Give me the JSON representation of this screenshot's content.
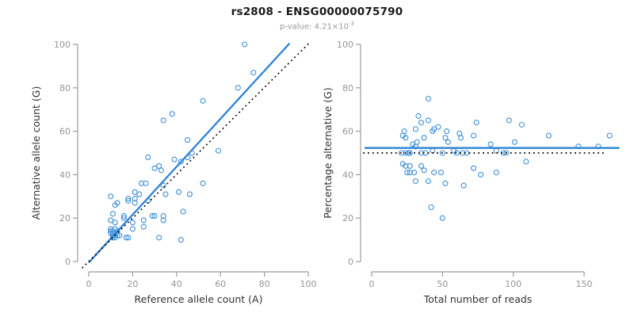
{
  "header": {
    "title": "rs2808 - ENSG00000075790",
    "subtitle_prefix": "p-value: 4.21×10",
    "subtitle_exponent": "-3"
  },
  "colors": {
    "point": "#3E8ED6",
    "solid_line": "#2B82D8",
    "dotted_line": "#000000",
    "axis": "#9b9b9b",
    "tick_label": "#969696",
    "axis_title": "#333333",
    "title": "#1a1a1a",
    "subtitle": "#9a9a9a"
  },
  "chart_data": [
    {
      "type": "scatter",
      "name": "allele-counts-scatter",
      "xlabel": "Reference allele count (A)",
      "ylabel": "Alternative allele count (G)",
      "xlim": [
        0,
        100
      ],
      "ylim": [
        0,
        100
      ],
      "xticks": [
        0,
        20,
        40,
        60,
        80,
        100
      ],
      "yticks": [
        0,
        20,
        40,
        60,
        80,
        100
      ],
      "grid": false,
      "legend": null,
      "points": [
        [
          71,
          100
        ],
        [
          75,
          87
        ],
        [
          68,
          80
        ],
        [
          52,
          74
        ],
        [
          38,
          68
        ],
        [
          34,
          65
        ],
        [
          45,
          56
        ],
        [
          59,
          51
        ],
        [
          47,
          50
        ],
        [
          45,
          48
        ],
        [
          27,
          48
        ],
        [
          39,
          47
        ],
        [
          42,
          46
        ],
        [
          30,
          43
        ],
        [
          32,
          44
        ],
        [
          33,
          42
        ],
        [
          52,
          36
        ],
        [
          24,
          36
        ],
        [
          26,
          36
        ],
        [
          34,
          35
        ],
        [
          10,
          30
        ],
        [
          13,
          27
        ],
        [
          18,
          29
        ],
        [
          18,
          28
        ],
        [
          21,
          32
        ],
        [
          23,
          31
        ],
        [
          21,
          29
        ],
        [
          21,
          27
        ],
        [
          27,
          28
        ],
        [
          35,
          31
        ],
        [
          41,
          32
        ],
        [
          46,
          31
        ],
        [
          43,
          23
        ],
        [
          11,
          22
        ],
        [
          12,
          26
        ],
        [
          16,
          21
        ],
        [
          16,
          20
        ],
        [
          10,
          19
        ],
        [
          12,
          18
        ],
        [
          13,
          14
        ],
        [
          12,
          12
        ],
        [
          14,
          12
        ],
        [
          17,
          11
        ],
        [
          18,
          11
        ],
        [
          20,
          15
        ],
        [
          25,
          16
        ],
        [
          30,
          21
        ],
        [
          32,
          11
        ],
        [
          42,
          10
        ],
        [
          34,
          21
        ],
        [
          20,
          18
        ],
        [
          25,
          19
        ],
        [
          29,
          21
        ],
        [
          34,
          19
        ],
        [
          10,
          14
        ],
        [
          10,
          13
        ],
        [
          11,
          13
        ],
        [
          11,
          12
        ],
        [
          11,
          14
        ],
        [
          12,
          13
        ],
        [
          12,
          11
        ],
        [
          13,
          12
        ],
        [
          10,
          15
        ],
        [
          12,
          15
        ],
        [
          11,
          11
        ]
      ],
      "lines": [
        {
          "name": "regression-line",
          "style": "solid",
          "color": "#2B82D8",
          "from": [
            0,
            -0.5
          ],
          "to": [
            91.5,
            100.5
          ]
        },
        {
          "name": "identity-line",
          "style": "dotted",
          "color": "#000000",
          "from": [
            -3,
            -3
          ],
          "to": [
            100.3,
            100.5
          ]
        }
      ]
    },
    {
      "type": "scatter",
      "name": "percentage-vs-reads-scatter",
      "xlabel": "Total number of reads",
      "ylabel": "Percentage alternative (G)",
      "xlim": [
        0,
        170
      ],
      "ylim": [
        0,
        100
      ],
      "xticks": [
        0,
        50,
        100,
        150
      ],
      "yticks": [
        0,
        20,
        40,
        60,
        80,
        100
      ],
      "grid": false,
      "legend": null,
      "points": [
        [
          40,
          75
        ],
        [
          33,
          67
        ],
        [
          40,
          65
        ],
        [
          97,
          65
        ],
        [
          74,
          64
        ],
        [
          106,
          63
        ],
        [
          35,
          64
        ],
        [
          31,
          61
        ],
        [
          44,
          61
        ],
        [
          47,
          62
        ],
        [
          43,
          60
        ],
        [
          53,
          60
        ],
        [
          23,
          60
        ],
        [
          24,
          57
        ],
        [
          22,
          58
        ],
        [
          32,
          55
        ],
        [
          29,
          54
        ],
        [
          31,
          53
        ],
        [
          37,
          57
        ],
        [
          52,
          57
        ],
        [
          54,
          55
        ],
        [
          62,
          59
        ],
        [
          63,
          57
        ],
        [
          72,
          58
        ],
        [
          125,
          58
        ],
        [
          168,
          58
        ],
        [
          84,
          54
        ],
        [
          101,
          55
        ],
        [
          146,
          53
        ],
        [
          160,
          53
        ],
        [
          88,
          51
        ],
        [
          93,
          50
        ],
        [
          95,
          50
        ],
        [
          109,
          46
        ],
        [
          88,
          41
        ],
        [
          21,
          50
        ],
        [
          24,
          50
        ],
        [
          26,
          50
        ],
        [
          27,
          50
        ],
        [
          35,
          50
        ],
        [
          38,
          50
        ],
        [
          43,
          51
        ],
        [
          50,
          50
        ],
        [
          58,
          51
        ],
        [
          60,
          50
        ],
        [
          64,
          50
        ],
        [
          67,
          50
        ],
        [
          22,
          45
        ],
        [
          24,
          44
        ],
        [
          27,
          44
        ],
        [
          25,
          41
        ],
        [
          27,
          41
        ],
        [
          30,
          41
        ],
        [
          35,
          44
        ],
        [
          37,
          42
        ],
        [
          44,
          41
        ],
        [
          49,
          41
        ],
        [
          72,
          43
        ],
        [
          77,
          40
        ],
        [
          31,
          37
        ],
        [
          40,
          37
        ],
        [
          52,
          36
        ],
        [
          65,
          35
        ],
        [
          42,
          25
        ],
        [
          50,
          20
        ]
      ],
      "lines": [
        {
          "name": "fit-line",
          "style": "solid",
          "color": "#2B82D8",
          "from": [
            -5,
            52.3
          ],
          "to": [
            175,
            52.3
          ]
        },
        {
          "name": "null-50-line",
          "style": "dotted",
          "color": "#000000",
          "from": [
            -6,
            50
          ],
          "to": [
            166,
            50
          ]
        }
      ]
    }
  ]
}
